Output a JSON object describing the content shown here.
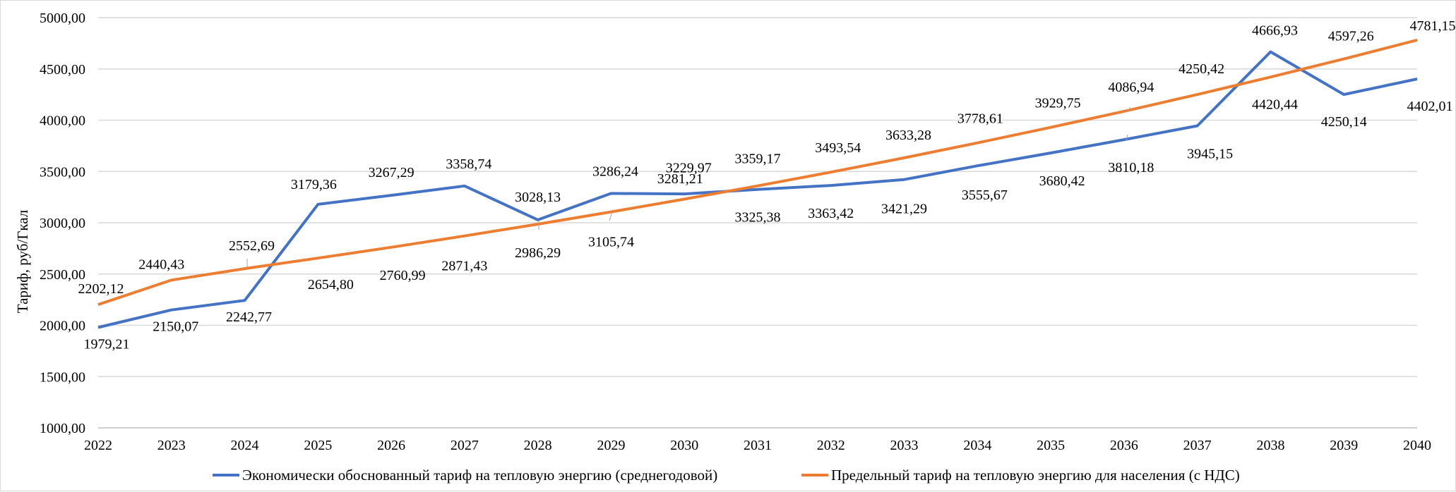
{
  "chart_data": {
    "type": "line",
    "title": "",
    "xlabel": "",
    "ylabel": "Тариф, руб/Гкал",
    "ylim": [
      1000,
      5000
    ],
    "yticks": [
      "1000,00",
      "1500,00",
      "2000,00",
      "2500,00",
      "3000,00",
      "3500,00",
      "4000,00",
      "4500,00",
      "5000,00"
    ],
    "categories": [
      "2022",
      "2023",
      "2024",
      "2025",
      "2026",
      "2027",
      "2028",
      "2029",
      "2030",
      "2031",
      "2032",
      "2033",
      "2034",
      "2035",
      "2036",
      "2037",
      "2038",
      "2039",
      "2040"
    ],
    "grid": true,
    "legend_position": "bottom",
    "series": [
      {
        "name": "Экономически обоснованный тариф на тепловую энергию (среднегодовой)",
        "color": "#4472C4",
        "values": [
          1979.21,
          2150.07,
          2242.77,
          3179.36,
          3267.29,
          3358.74,
          3028.13,
          3286.24,
          3281.21,
          3325.38,
          3363.42,
          3421.29,
          3555.67,
          3680.42,
          3810.18,
          3945.15,
          4666.93,
          4250.14,
          4402.01
        ],
        "labels": [
          "1979,21",
          "2150,07",
          "2242,77",
          "3179,36",
          "3267,29",
          "3358,74",
          "3028,13",
          "3286,24",
          "3281,21",
          "3325,38",
          "3363,42",
          "3421,29",
          "3555,67",
          "3680,42",
          "3810,18",
          "3945,15",
          "4666,93",
          "4250,14",
          "4402,01"
        ]
      },
      {
        "name": "Предельный тариф на тепловую энергию для населения (с НДС)",
        "color": "#ED7D31",
        "values": [
          2202.12,
          2440.43,
          2552.69,
          2654.8,
          2760.99,
          2871.43,
          2986.29,
          3105.74,
          3229.97,
          3359.17,
          3493.54,
          3633.28,
          3778.61,
          3929.75,
          4086.94,
          4250.42,
          4420.44,
          4597.26,
          4781.15
        ],
        "labels": [
          "2202,12",
          "2440,43",
          "2552,69",
          "2654,80",
          "2760,99",
          "2871,43",
          "2986,29",
          "3105,74",
          "3229,97",
          "3359,17",
          "3493,54",
          "3633,28",
          "3778,61",
          "3929,75",
          "4086,94",
          "4250,42",
          "4420,44",
          "4597,26",
          "4781,15"
        ]
      }
    ]
  }
}
